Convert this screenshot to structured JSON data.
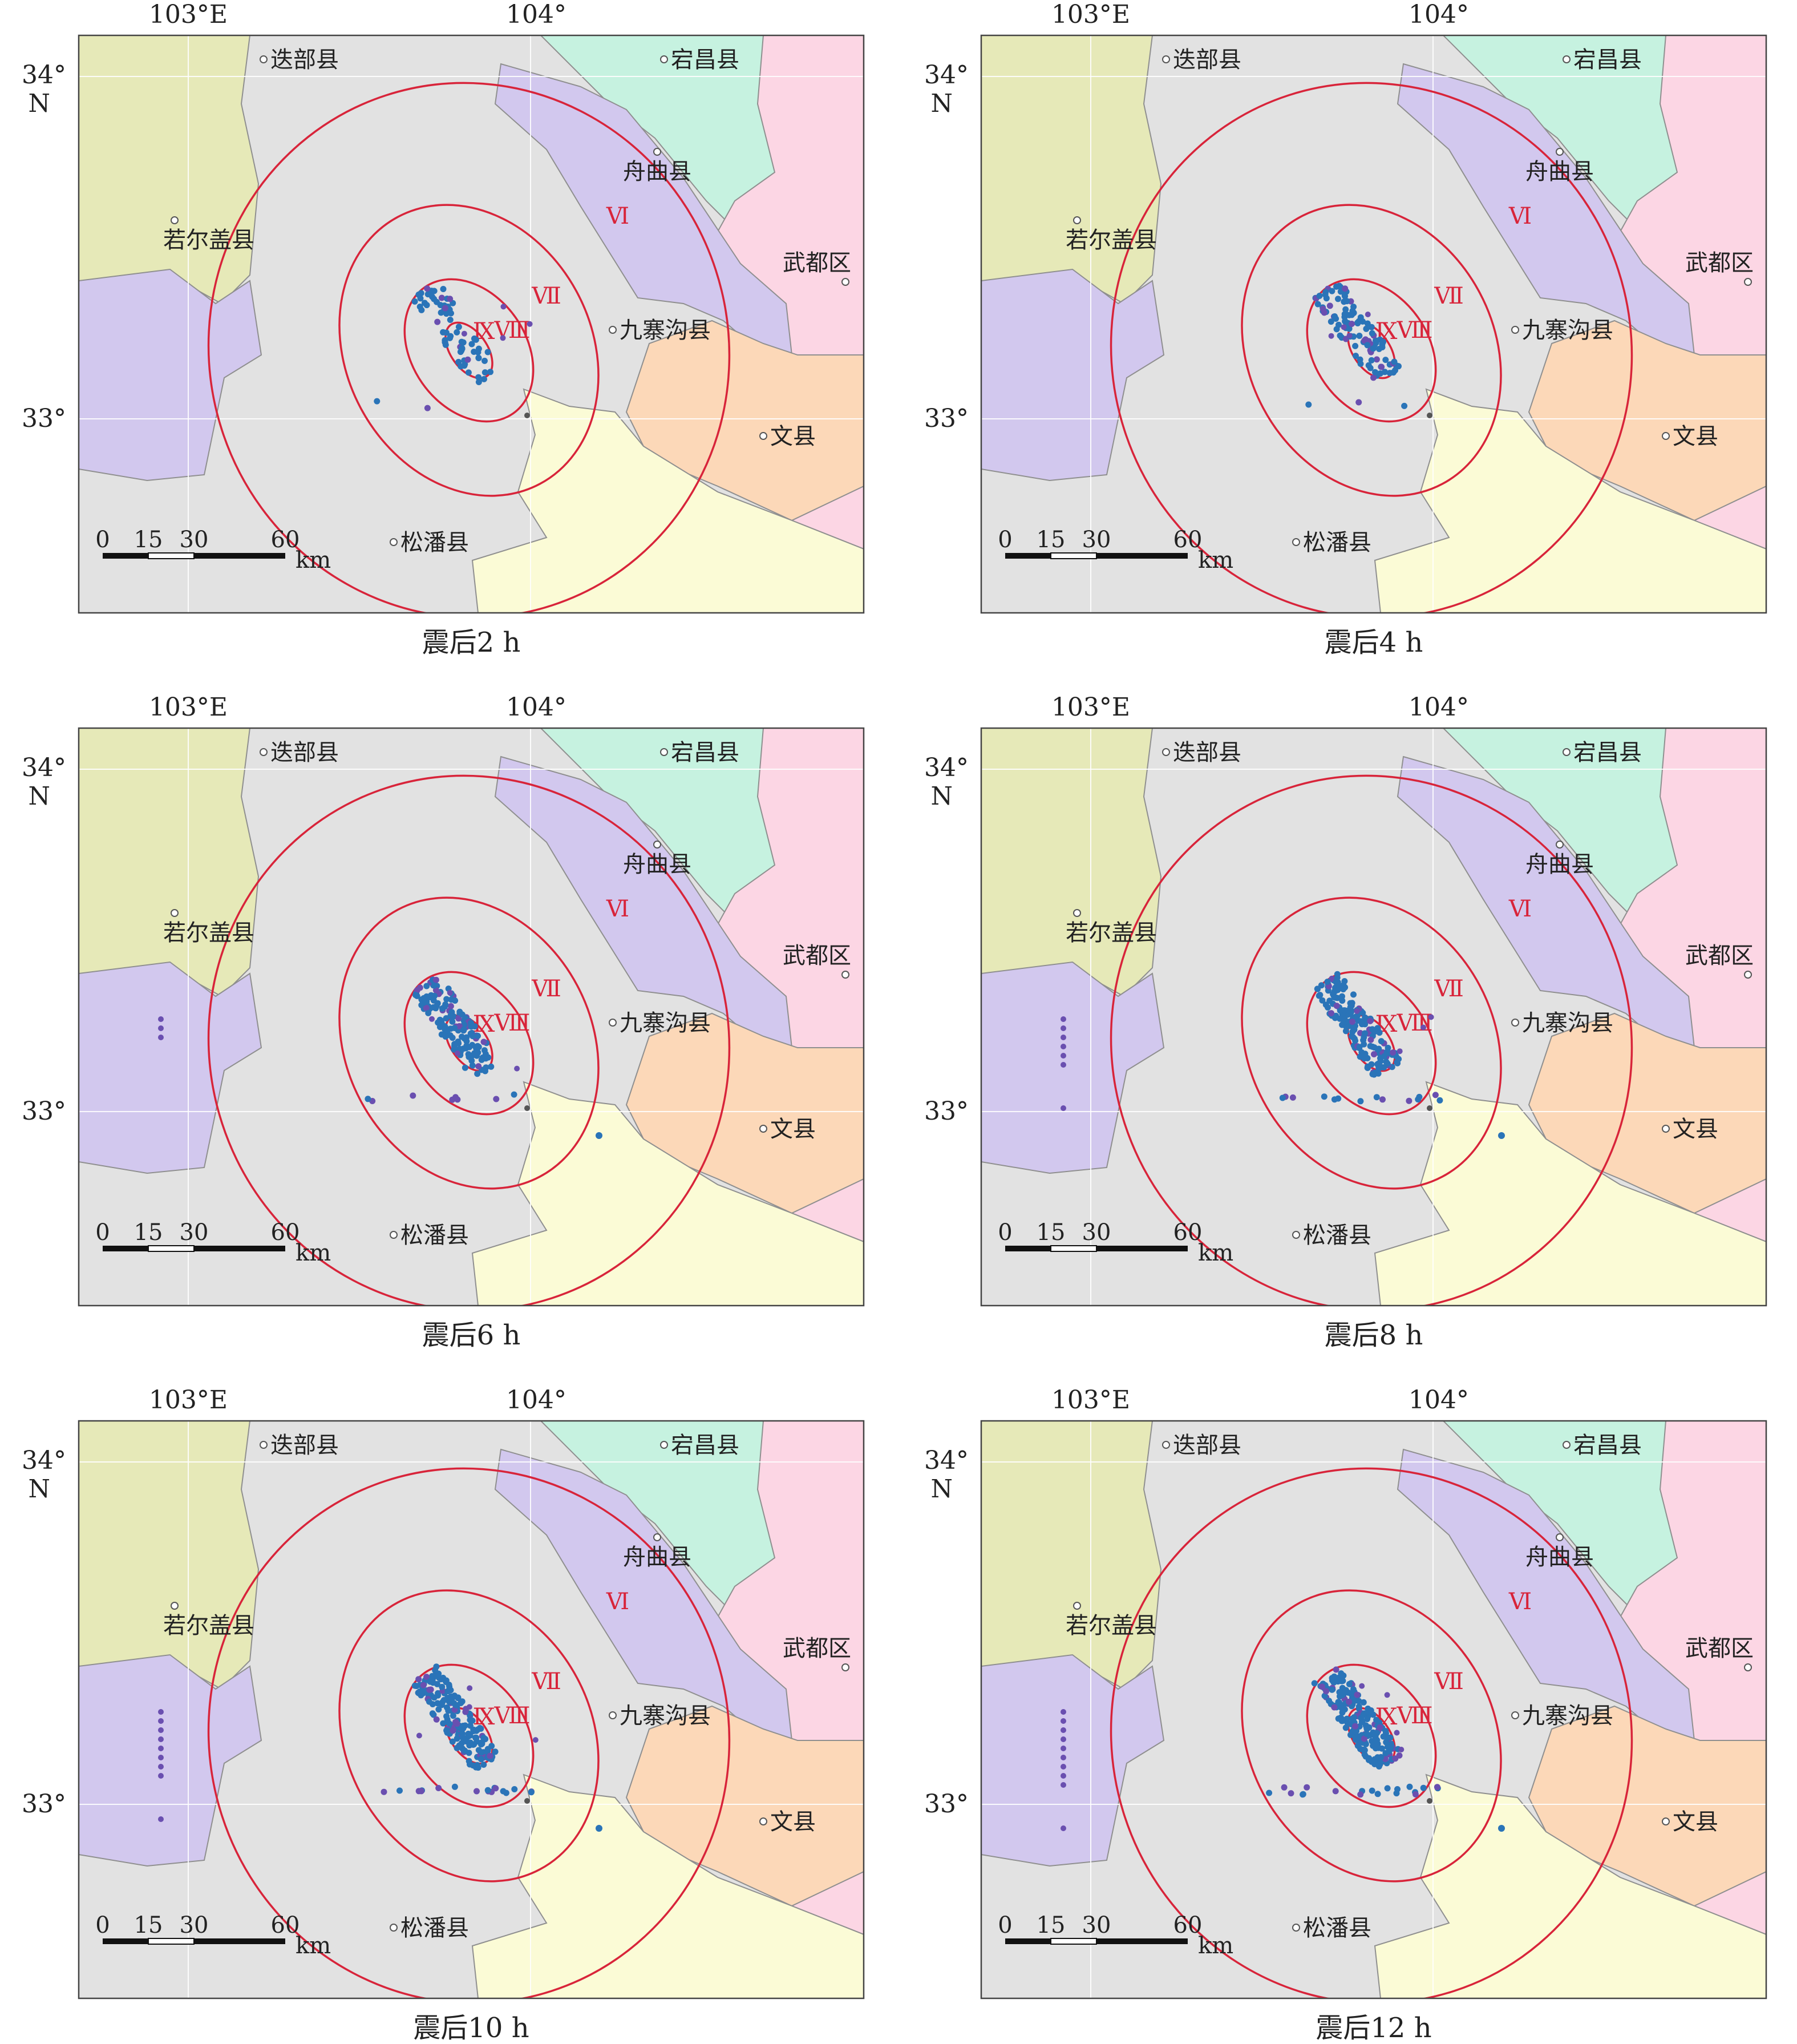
{
  "panels": [
    {
      "caption": "震后2 h",
      "clusterCount": 70,
      "lowerScatter": 2,
      "westCount": 0,
      "seStar": false
    },
    {
      "caption": "震后4 h",
      "clusterCount": 110,
      "lowerScatter": 3,
      "westCount": 0,
      "seStar": false
    },
    {
      "caption": "震后6 h",
      "clusterCount": 150,
      "lowerScatter": 8,
      "westCount": 3,
      "seStar": true
    },
    {
      "caption": "震后8 h",
      "clusterCount": 170,
      "lowerScatter": 14,
      "westCount": 7,
      "seStar": true
    },
    {
      "caption": "震后10 h",
      "clusterCount": 190,
      "lowerScatter": 18,
      "westCount": 9,
      "seStar": true
    },
    {
      "caption": "震后12 h",
      "clusterCount": 200,
      "lowerScatter": 20,
      "westCount": 10,
      "seStar": true
    }
  ],
  "axes": {
    "lon_labels": [
      "103°E",
      "104°"
    ],
    "lat_labels": [
      "34°",
      "N",
      "33°"
    ]
  },
  "scale_bar": {
    "ticks": [
      "0",
      "15",
      "30",
      "60"
    ],
    "unit": "km"
  },
  "places": [
    {
      "name": "迭部县",
      "lon": 103.22,
      "lat": 34.05
    },
    {
      "name": "宕昌县",
      "lon": 104.39,
      "lat": 34.05
    },
    {
      "name": "舟曲县",
      "lon": 104.37,
      "lat": 33.78
    },
    {
      "name": "若尔盖县",
      "lon": 102.96,
      "lat": 33.58
    },
    {
      "name": "武都区",
      "lon": 104.92,
      "lat": 33.4
    },
    {
      "name": "九寨沟县",
      "lon": 104.24,
      "lat": 33.26
    },
    {
      "name": "文县",
      "lon": 104.68,
      "lat": 32.95
    },
    {
      "name": "松潘县",
      "lon": 103.6,
      "lat": 32.64
    }
  ],
  "intensity_labels": [
    "Ⅵ",
    "Ⅶ",
    "Ⅷ",
    "Ⅸ"
  ],
  "colors": {
    "isoseismal": "#d8243a",
    "quake_blue": "#2a74b8",
    "quake_purple": "#6a4fb0",
    "region_gray": "#e2e2e2",
    "region_green": "#e6e9b8",
    "region_purple": "#d2c8ee",
    "region_mint": "#c6f2e0",
    "region_pink": "#fcd6e4",
    "region_peach": "#fcd8b8",
    "region_yellow": "#fbfbd6"
  }
}
